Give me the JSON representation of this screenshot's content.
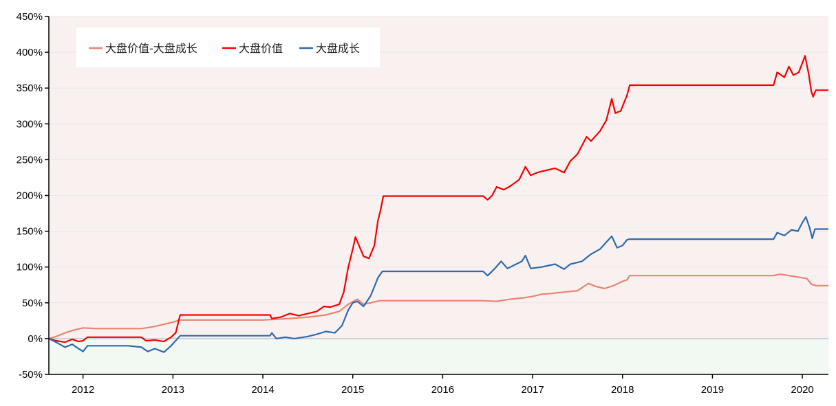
{
  "chart_data": {
    "type": "line",
    "title": "",
    "xlabel": "",
    "ylabel": "",
    "x_tick_labels": [
      "2012",
      "2013",
      "2014",
      "2015",
      "2016",
      "2017",
      "2018",
      "2019",
      "2020"
    ],
    "y_tick_labels": [
      "-50%",
      "0%",
      "50%",
      "100%",
      "150%",
      "200%",
      "250%",
      "300%",
      "350%",
      "400%",
      "450%"
    ],
    "xlim": [
      2011.62,
      2020.29
    ],
    "ylim": [
      -50,
      450
    ],
    "y_unit": "%",
    "legend_position": "top-left",
    "background_positive_color": "#f9f0f0",
    "background_negative_color": "#f2f8f2",
    "grid": "horizontal",
    "series": [
      {
        "name": "大盘价值-大盘成长",
        "color": "#e8846f",
        "points": [
          [
            2011.62,
            0
          ],
          [
            2011.7,
            3
          ],
          [
            2011.8,
            8
          ],
          [
            2011.9,
            12
          ],
          [
            2012.0,
            15
          ],
          [
            2012.15,
            14
          ],
          [
            2012.3,
            14
          ],
          [
            2012.5,
            14
          ],
          [
            2012.65,
            14
          ],
          [
            2012.8,
            17
          ],
          [
            2012.9,
            20
          ],
          [
            2013.0,
            23
          ],
          [
            2013.08,
            26
          ],
          [
            2013.5,
            26
          ],
          [
            2014.0,
            26
          ],
          [
            2014.15,
            27
          ],
          [
            2014.3,
            28
          ],
          [
            2014.5,
            30
          ],
          [
            2014.7,
            33
          ],
          [
            2014.85,
            38
          ],
          [
            2014.95,
            48
          ],
          [
            2015.05,
            55
          ],
          [
            2015.12,
            48
          ],
          [
            2015.2,
            50
          ],
          [
            2015.3,
            53
          ],
          [
            2015.5,
            53
          ],
          [
            2016.0,
            53
          ],
          [
            2016.45,
            53
          ],
          [
            2016.6,
            52
          ],
          [
            2016.75,
            55
          ],
          [
            2016.9,
            57
          ],
          [
            2017.0,
            59
          ],
          [
            2017.1,
            62
          ],
          [
            2017.2,
            63
          ],
          [
            2017.35,
            65
          ],
          [
            2017.5,
            67
          ],
          [
            2017.62,
            77
          ],
          [
            2017.7,
            73
          ],
          [
            2017.8,
            70
          ],
          [
            2017.9,
            74
          ],
          [
            2018.0,
            80
          ],
          [
            2018.05,
            82
          ],
          [
            2018.08,
            88
          ],
          [
            2018.5,
            88
          ],
          [
            2019.0,
            88
          ],
          [
            2019.5,
            88
          ],
          [
            2019.68,
            88
          ],
          [
            2019.75,
            90
          ],
          [
            2019.85,
            88
          ],
          [
            2019.95,
            86
          ],
          [
            2020.05,
            84
          ],
          [
            2020.1,
            76
          ],
          [
            2020.15,
            74
          ],
          [
            2020.29,
            74
          ]
        ]
      },
      {
        "name": "大盘价值",
        "color": "#f40000",
        "points": [
          [
            2011.62,
            0
          ],
          [
            2011.7,
            -3
          ],
          [
            2011.8,
            -5
          ],
          [
            2011.88,
            -1
          ],
          [
            2011.95,
            -4
          ],
          [
            2012.0,
            -3
          ],
          [
            2012.05,
            2
          ],
          [
            2012.2,
            2
          ],
          [
            2012.5,
            2
          ],
          [
            2012.65,
            2
          ],
          [
            2012.7,
            -3
          ],
          [
            2012.8,
            -2
          ],
          [
            2012.9,
            -4
          ],
          [
            2012.98,
            2
          ],
          [
            2013.03,
            8
          ],
          [
            2013.08,
            33
          ],
          [
            2013.5,
            33
          ],
          [
            2014.0,
            33
          ],
          [
            2014.08,
            33
          ],
          [
            2014.1,
            28
          ],
          [
            2014.2,
            30
          ],
          [
            2014.3,
            35
          ],
          [
            2014.4,
            32
          ],
          [
            2014.5,
            35
          ],
          [
            2014.6,
            38
          ],
          [
            2014.68,
            45
          ],
          [
            2014.75,
            44
          ],
          [
            2014.85,
            48
          ],
          [
            2014.9,
            65
          ],
          [
            2014.95,
            100
          ],
          [
            2015.0,
            125
          ],
          [
            2015.03,
            142
          ],
          [
            2015.07,
            130
          ],
          [
            2015.12,
            115
          ],
          [
            2015.18,
            112
          ],
          [
            2015.24,
            130
          ],
          [
            2015.28,
            165
          ],
          [
            2015.31,
            180
          ],
          [
            2015.34,
            199
          ],
          [
            2015.5,
            199
          ],
          [
            2016.0,
            199
          ],
          [
            2016.45,
            199
          ],
          [
            2016.5,
            194
          ],
          [
            2016.55,
            200
          ],
          [
            2016.6,
            212
          ],
          [
            2016.68,
            208
          ],
          [
            2016.75,
            213
          ],
          [
            2016.85,
            222
          ],
          [
            2016.92,
            240
          ],
          [
            2016.98,
            228
          ],
          [
            2017.05,
            232
          ],
          [
            2017.15,
            235
          ],
          [
            2017.25,
            238
          ],
          [
            2017.35,
            232
          ],
          [
            2017.42,
            248
          ],
          [
            2017.5,
            258
          ],
          [
            2017.6,
            282
          ],
          [
            2017.65,
            276
          ],
          [
            2017.75,
            290
          ],
          [
            2017.82,
            305
          ],
          [
            2017.88,
            335
          ],
          [
            2017.92,
            315
          ],
          [
            2017.98,
            318
          ],
          [
            2018.05,
            340
          ],
          [
            2018.08,
            354
          ],
          [
            2018.5,
            354
          ],
          [
            2019.0,
            354
          ],
          [
            2019.5,
            354
          ],
          [
            2019.68,
            354
          ],
          [
            2019.72,
            372
          ],
          [
            2019.8,
            365
          ],
          [
            2019.85,
            380
          ],
          [
            2019.9,
            368
          ],
          [
            2019.96,
            372
          ],
          [
            2020.0,
            385
          ],
          [
            2020.03,
            395
          ],
          [
            2020.07,
            370
          ],
          [
            2020.1,
            345
          ],
          [
            2020.12,
            338
          ],
          [
            2020.15,
            347
          ],
          [
            2020.29,
            347
          ]
        ]
      },
      {
        "name": "大盘成长",
        "color": "#2f6aa9",
        "points": [
          [
            2011.62,
            0
          ],
          [
            2011.7,
            -5
          ],
          [
            2011.8,
            -12
          ],
          [
            2011.88,
            -8
          ],
          [
            2011.95,
            -14
          ],
          [
            2012.0,
            -18
          ],
          [
            2012.05,
            -10
          ],
          [
            2012.2,
            -10
          ],
          [
            2012.5,
            -10
          ],
          [
            2012.65,
            -12
          ],
          [
            2012.72,
            -18
          ],
          [
            2012.8,
            -14
          ],
          [
            2012.9,
            -19
          ],
          [
            2012.98,
            -10
          ],
          [
            2013.03,
            -3
          ],
          [
            2013.08,
            4
          ],
          [
            2013.5,
            4
          ],
          [
            2014.0,
            4
          ],
          [
            2014.08,
            4
          ],
          [
            2014.1,
            8
          ],
          [
            2014.15,
            0
          ],
          [
            2014.25,
            2
          ],
          [
            2014.35,
            0
          ],
          [
            2014.5,
            3
          ],
          [
            2014.6,
            6
          ],
          [
            2014.7,
            10
          ],
          [
            2014.8,
            8
          ],
          [
            2014.88,
            18
          ],
          [
            2014.95,
            40
          ],
          [
            2015.0,
            50
          ],
          [
            2015.05,
            52
          ],
          [
            2015.12,
            45
          ],
          [
            2015.2,
            60
          ],
          [
            2015.28,
            85
          ],
          [
            2015.33,
            94
          ],
          [
            2015.5,
            94
          ],
          [
            2016.0,
            94
          ],
          [
            2016.45,
            94
          ],
          [
            2016.5,
            88
          ],
          [
            2016.58,
            98
          ],
          [
            2016.65,
            108
          ],
          [
            2016.72,
            98
          ],
          [
            2016.8,
            103
          ],
          [
            2016.88,
            108
          ],
          [
            2016.92,
            116
          ],
          [
            2016.98,
            98
          ],
          [
            2017.1,
            100
          ],
          [
            2017.25,
            104
          ],
          [
            2017.35,
            97
          ],
          [
            2017.42,
            104
          ],
          [
            2017.55,
            108
          ],
          [
            2017.65,
            118
          ],
          [
            2017.75,
            125
          ],
          [
            2017.8,
            132
          ],
          [
            2017.88,
            143
          ],
          [
            2017.94,
            127
          ],
          [
            2018.0,
            130
          ],
          [
            2018.05,
            138
          ],
          [
            2018.08,
            139
          ],
          [
            2018.5,
            139
          ],
          [
            2019.0,
            139
          ],
          [
            2019.5,
            139
          ],
          [
            2019.68,
            139
          ],
          [
            2019.72,
            148
          ],
          [
            2019.8,
            144
          ],
          [
            2019.88,
            152
          ],
          [
            2019.95,
            150
          ],
          [
            2020.0,
            162
          ],
          [
            2020.04,
            170
          ],
          [
            2020.08,
            155
          ],
          [
            2020.11,
            140
          ],
          [
            2020.14,
            153
          ],
          [
            2020.29,
            153
          ]
        ]
      }
    ]
  }
}
